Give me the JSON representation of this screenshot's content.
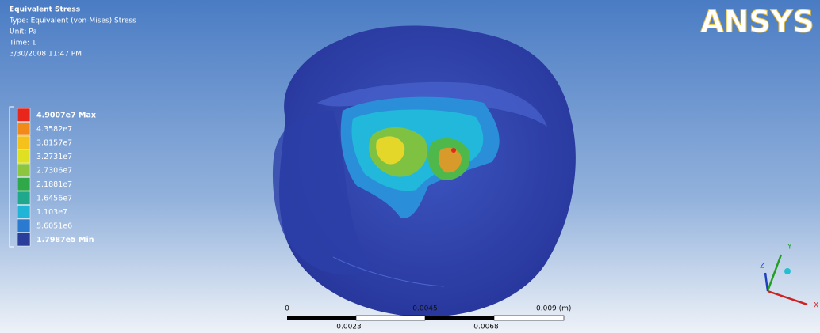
{
  "header": {
    "title": "Equivalent Stress",
    "type": "Type: Equivalent (von-Mises) Stress",
    "unit": "Unit: Pa",
    "time": "Time: 1",
    "date": "3/30/2008 11:47 PM"
  },
  "legend": [
    {
      "label": "4.9007e7 Max",
      "color": "#e8261c"
    },
    {
      "label": "4.3582e7",
      "color": "#f28a1a"
    },
    {
      "label": "3.8157e7",
      "color": "#f5c21b"
    },
    {
      "label": "3.2731e7",
      "color": "#dfe022"
    },
    {
      "label": "2.7306e7",
      "color": "#8cc63e"
    },
    {
      "label": "2.1881e7",
      "color": "#2fa84a"
    },
    {
      "label": "1.6456e7",
      "color": "#1fa88c"
    },
    {
      "label": "1.103e7",
      "color": "#20b4d6"
    },
    {
      "label": "5.6051e6",
      "color": "#2a7ad0"
    },
    {
      "label": "1.7987e5 Min",
      "color": "#2a3d9a"
    }
  ],
  "logo": "ANSYS",
  "scale_bar": {
    "top": [
      "0",
      "0.0045",
      "0.009 (m)"
    ],
    "bottom": [
      "0.0023",
      "0.0068"
    ]
  },
  "triad": {
    "x": "X",
    "y": "Y",
    "z": "Z"
  }
}
